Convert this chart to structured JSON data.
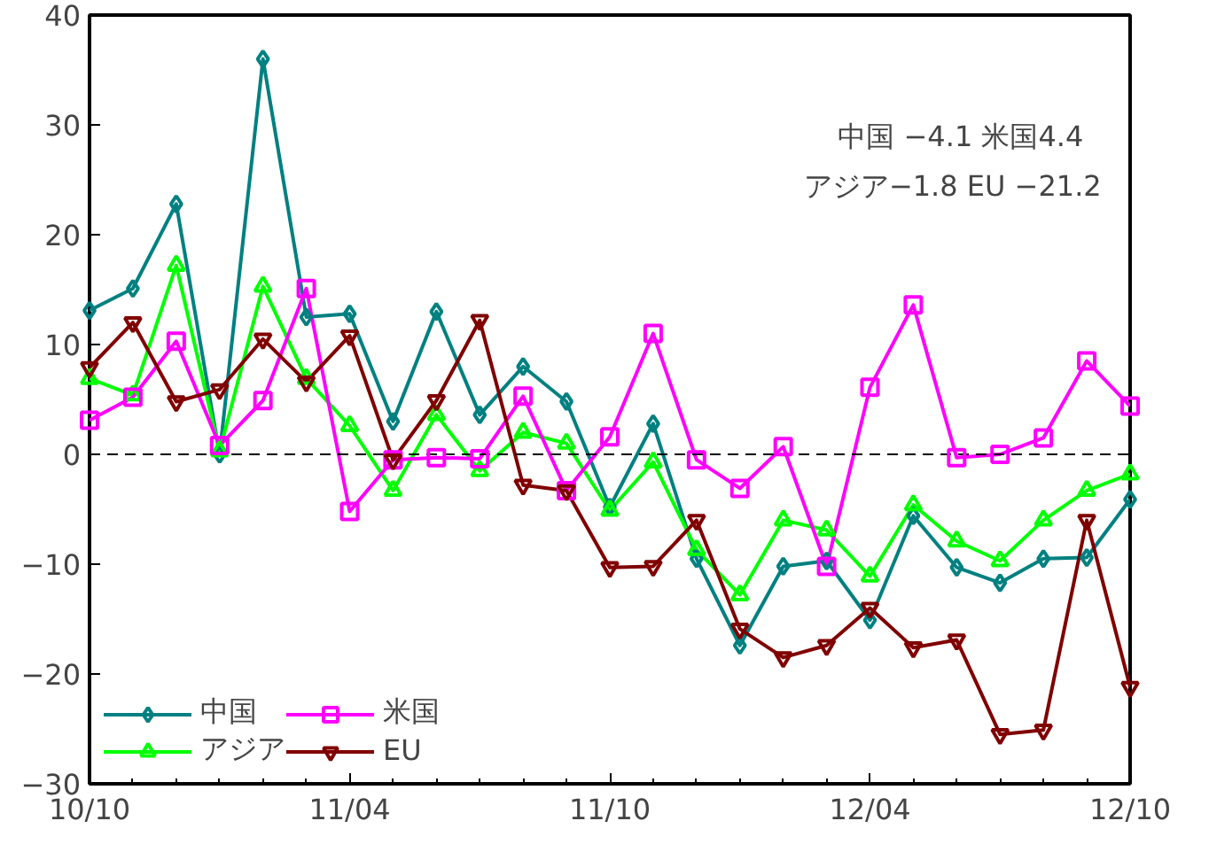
{
  "chart_data": {
    "type": "line",
    "x": [
      "2010-10",
      "2010-11",
      "2010-12",
      "2011-01",
      "2011-02",
      "2011-03",
      "2011-04",
      "2011-05",
      "2011-06",
      "2011-07",
      "2011-08",
      "2011-09",
      "2011-10",
      "2011-11",
      "2011-12",
      "2012-01",
      "2012-02",
      "2012-03",
      "2012-04",
      "2012-05",
      "2012-06",
      "2012-07",
      "2012-08",
      "2012-09",
      "2012-10"
    ],
    "series": [
      {
        "name": "中国",
        "color": "#008080",
        "marker": "diamond",
        "values": [
          13.1,
          15.1,
          22.8,
          0,
          36,
          12.5,
          12.8,
          3,
          13,
          3.6,
          8,
          4.8,
          -4.8,
          2.8,
          -9.5,
          -17.4,
          -10.2,
          -9.7,
          -15.1,
          -5.6,
          -10.3,
          -11.7,
          -9.5,
          -9.4,
          -4.1
        ]
      },
      {
        "name": "アジア",
        "color": "#00ff00",
        "marker": "triangle",
        "values": [
          6.9,
          5.4,
          17.2,
          0.3,
          15.3,
          6.9,
          2.6,
          -3.3,
          3.6,
          -1.5,
          2,
          1,
          -5.1,
          -0.7,
          -8.7,
          -12.8,
          -6,
          -6.9,
          -11.1,
          -4.6,
          -7.9,
          -9.7,
          -6,
          -3.3,
          -1.8
        ]
      },
      {
        "name": "米国",
        "color": "#ff00ff",
        "marker": "square",
        "values": [
          3.1,
          5.2,
          10.3,
          0.8,
          4.9,
          15.1,
          -5.2,
          -0.5,
          -0.3,
          -0.4,
          5.3,
          -3.3,
          1.6,
          11,
          -0.5,
          -3.1,
          0.7,
          -10.2,
          6.1,
          13.6,
          -0.3,
          0,
          1.5,
          8.5,
          4.4
        ]
      },
      {
        "name": "EU",
        "color": "#800000",
        "marker": "triangle",
        "values": [
          7.9,
          12,
          4.8,
          5.9,
          10.5,
          6.6,
          10.8,
          -0.5,
          4.9,
          12.2,
          -2.8,
          -3.3,
          -10.3,
          -10.2,
          -6,
          -15.9,
          -18.5,
          -17.4,
          -14,
          -17.6,
          -16.9,
          -25.5,
          -25.1,
          -6,
          -21.2
        ]
      }
    ],
    "xlim": [
      "2010-10",
      "2012-10"
    ],
    "xticks": [
      {
        "value": "2010-10",
        "label": "10/10"
      },
      {
        "value": "2011-04",
        "label": "11/04"
      },
      {
        "value": "2011-10",
        "label": "11/10"
      },
      {
        "value": "2012-04",
        "label": "12/04"
      },
      {
        "value": "2012-10",
        "label": "12/10"
      }
    ],
    "ylim": [
      -30,
      40
    ],
    "yticks": [
      -30,
      -20,
      -10,
      0,
      10,
      20,
      30,
      40
    ],
    "ref_lines": [
      {
        "axis": "y",
        "value": 0,
        "color": "#000000",
        "line_style": "dashed"
      }
    ],
    "annotations": [
      "中国  −4.1    米国4.4",
      "アジア−1.8   EU −21.2"
    ],
    "grid": false,
    "legend": "bottom left",
    "line_style": "solid"
  }
}
